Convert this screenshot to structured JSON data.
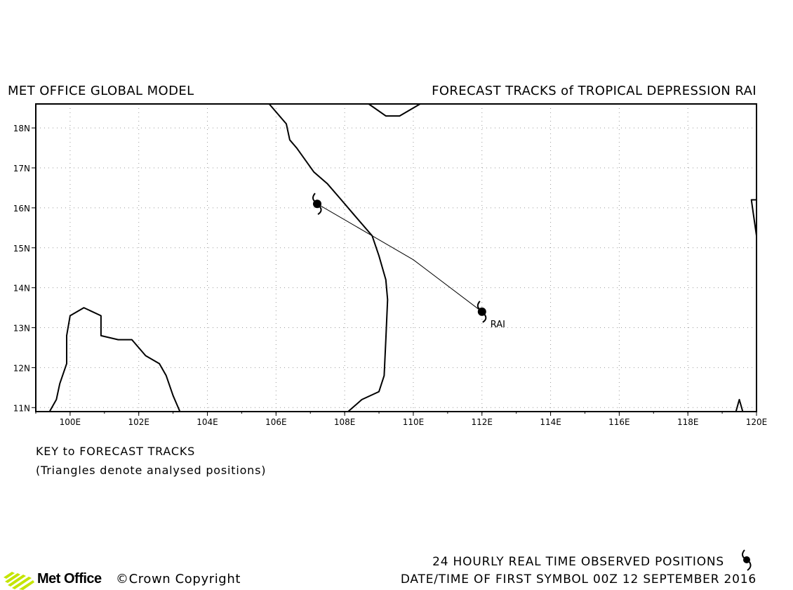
{
  "header": {
    "model": "MET OFFICE GLOBAL MODEL",
    "title": "FORECAST TRACKS of TROPICAL DEPRESSION RAI"
  },
  "map": {
    "lon_range": [
      99.0,
      120.0
    ],
    "lat_range": [
      10.9,
      18.6
    ],
    "grid": "dotted, every 2 deg lon / 1 deg lat",
    "lon_ticks": [
      "100E",
      "102E",
      "104E",
      "106E",
      "108E",
      "110E",
      "112E",
      "114E",
      "116E",
      "118E",
      "120E"
    ],
    "lat_ticks": [
      "11N",
      "12N",
      "13N",
      "14N",
      "15N",
      "16N",
      "17N",
      "18N"
    ],
    "track": {
      "storm": "RAI",
      "points": [
        {
          "lon": 112.0,
          "lat": 13.4
        },
        {
          "lon": 110.0,
          "lat": 14.7
        },
        {
          "lon": 108.8,
          "lat": 15.3
        },
        {
          "lon": 107.2,
          "lat": 16.1
        }
      ]
    },
    "coastlines": [
      [
        [
          105.8,
          18.6
        ],
        [
          106.3,
          18.1
        ],
        [
          106.4,
          17.7
        ],
        [
          106.6,
          17.5
        ],
        [
          107.1,
          16.9
        ],
        [
          107.5,
          16.6
        ],
        [
          107.9,
          16.2
        ],
        [
          108.3,
          15.8
        ],
        [
          108.8,
          15.3
        ],
        [
          109.0,
          14.8
        ],
        [
          109.2,
          14.2
        ],
        [
          109.25,
          13.7
        ],
        [
          109.2,
          12.7
        ],
        [
          109.15,
          11.8
        ],
        [
          109.0,
          11.4
        ],
        [
          108.5,
          11.2
        ],
        [
          108.1,
          10.9
        ]
      ],
      [
        [
          99.4,
          10.9
        ],
        [
          99.6,
          11.2
        ],
        [
          99.7,
          11.6
        ],
        [
          99.9,
          12.1
        ],
        [
          99.9,
          12.8
        ],
        [
          100.0,
          13.3
        ],
        [
          100.4,
          13.5
        ],
        [
          100.9,
          13.3
        ],
        [
          100.9,
          12.8
        ],
        [
          101.4,
          12.7
        ],
        [
          101.8,
          12.7
        ],
        [
          102.2,
          12.3
        ],
        [
          102.6,
          12.1
        ],
        [
          102.8,
          11.8
        ],
        [
          103.0,
          11.3
        ],
        [
          103.2,
          10.9
        ]
      ],
      [
        [
          108.7,
          18.6
        ],
        [
          109.2,
          18.3
        ],
        [
          109.6,
          18.3
        ],
        [
          110.2,
          18.6
        ]
      ],
      [
        [
          119.4,
          10.9
        ],
        [
          119.5,
          11.2
        ],
        [
          119.6,
          10.9
        ]
      ],
      [
        [
          120.0,
          15.3
        ],
        [
          119.9,
          15.9
        ],
        [
          119.85,
          16.2
        ],
        [
          120.0,
          16.2
        ]
      ]
    ],
    "storm_label": "RAI",
    "symbol": "tropical-cyclone-icon"
  },
  "key": {
    "title": "KEY to FORECAST TRACKS",
    "note": "(Triangles denote analysed positions)"
  },
  "footer": {
    "observed": "24 HOURLY REAL TIME OBSERVED POSITIONS",
    "datetime": "DATE/TIME OF FIRST SYMBOL 00Z 12 SEPTEMBER 2016",
    "logo": "Met Office",
    "copyright": "©Crown Copyright"
  },
  "colors": {
    "lines": "#000000",
    "grid": "#9a9a9a",
    "logo_green": "#c4e500"
  }
}
